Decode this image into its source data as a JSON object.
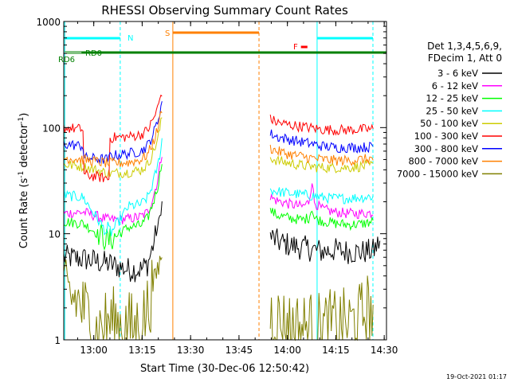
{
  "chart_data": {
    "type": "line",
    "title": "RHESSI Observing Summary Count Rates",
    "xlabel": "Start Time (30-Dec-06 12:50:42)",
    "ylabel_main": "Count Rate (s",
    "ylabel_sup1": "-1",
    "ylabel_mid": " detector",
    "ylabel_sup2": "-1",
    "ylabel_end": ")",
    "yscale": "log",
    "ylim": [
      1,
      1000
    ],
    "xlim_minutes": [
      0,
      100
    ],
    "x_ticks": [
      {
        "t": 9.3,
        "label": "13:00"
      },
      {
        "t": 24.3,
        "label": "13:15"
      },
      {
        "t": 39.3,
        "label": "13:30"
      },
      {
        "t": 54.3,
        "label": "13:45"
      },
      {
        "t": 69.3,
        "label": "14:00"
      },
      {
        "t": 84.3,
        "label": "14:15"
      },
      {
        "t": 99.3,
        "label": "14:30"
      }
    ],
    "y_ticks": [
      {
        "v": 1,
        "label": "1"
      },
      {
        "v": 10,
        "label": "10"
      },
      {
        "v": 100,
        "label": "100"
      },
      {
        "v": 1000,
        "label": "1000"
      }
    ],
    "legend_header": [
      "Det 1,3,4,5,6,9,",
      "FDecim 1, Att 0"
    ],
    "legend_placement": "right",
    "gap": [
      25,
      64
    ],
    "series": [
      {
        "name": "3 - 6 keV",
        "color": "#000000",
        "segments": [
          [
            [
              0,
              6.0
            ],
            [
              6,
              5.8
            ],
            [
              14,
              5.2
            ],
            [
              20,
              4.6
            ],
            [
              24,
              4.6
            ],
            [
              26,
              5.2
            ],
            [
              27,
              6.5
            ],
            [
              28,
              8.5
            ],
            [
              29,
              11
            ],
            [
              29.5,
              13
            ],
            [
              30,
              16
            ],
            [
              30.5,
              20
            ]
          ],
          [
            [
              64,
              9.5
            ],
            [
              66,
              8.5
            ],
            [
              70,
              7.8
            ],
            [
              76,
              7.2
            ],
            [
              80,
              6.8
            ],
            [
              84,
              7.0
            ],
            [
              88,
              6.8
            ],
            [
              92,
              6.7
            ],
            [
              96,
              6.9
            ],
            [
              98,
              8.5
            ]
          ]
        ]
      },
      {
        "name": "6 - 12 keV",
        "color": "#ff00ff",
        "segments": [
          [
            [
              0,
              15.5
            ],
            [
              6,
              16.0
            ],
            [
              14,
              13.5
            ],
            [
              20,
              13.8
            ],
            [
              24,
              14.5
            ],
            [
              26,
              16
            ],
            [
              27,
              19
            ],
            [
              28,
              24
            ],
            [
              29,
              31
            ],
            [
              29.5,
              38
            ],
            [
              30,
              48
            ],
            [
              30.5,
              60
            ]
          ],
          [
            [
              64,
              22
            ],
            [
              66,
              20.5
            ],
            [
              70,
              19
            ],
            [
              74,
              18
            ],
            [
              76,
              20
            ],
            [
              77,
              33
            ],
            [
              77.5,
              20
            ],
            [
              80,
              17
            ],
            [
              84,
              16
            ],
            [
              88,
              15.5
            ],
            [
              92,
              15.5
            ],
            [
              96,
              15.8
            ]
          ]
        ]
      },
      {
        "name": "12 - 25 keV",
        "color": "#00ff00",
        "segments": [
          [
            [
              0,
              13
            ],
            [
              6,
              12.5
            ],
            [
              14,
              8.5
            ],
            [
              20,
              11.5
            ],
            [
              24,
              12
            ],
            [
              26,
              14
            ],
            [
              27,
              17
            ],
            [
              28,
              21
            ],
            [
              29,
              27
            ],
            [
              29.5,
              32
            ],
            [
              30,
              40
            ],
            [
              30.5,
              52
            ]
          ],
          [
            [
              64,
              16.5
            ],
            [
              66,
              15
            ],
            [
              70,
              14
            ],
            [
              74,
              13.5
            ],
            [
              76,
              14.2
            ],
            [
              77,
              18
            ],
            [
              77.5,
              14
            ],
            [
              80,
              13.2
            ],
            [
              84,
              12.5
            ],
            [
              88,
              12.2
            ],
            [
              92,
              12.3
            ],
            [
              96,
              13
            ]
          ]
        ]
      },
      {
        "name": "25 - 50 keV",
        "color": "#00ffff",
        "segments": [
          [
            [
              0,
              23
            ],
            [
              6,
              22
            ],
            [
              14,
              9.5
            ],
            [
              20,
              18
            ],
            [
              24,
              19
            ],
            [
              26,
              22
            ],
            [
              27,
              26
            ],
            [
              28,
              33
            ],
            [
              29,
              42
            ],
            [
              29.5,
              50
            ],
            [
              30,
              62
            ],
            [
              30.5,
              80
            ]
          ],
          [
            [
              64,
              26
            ],
            [
              66,
              25
            ],
            [
              70,
              24
            ],
            [
              76,
              23
            ],
            [
              80,
              22
            ],
            [
              84,
              21.5
            ],
            [
              88,
              21.5
            ],
            [
              92,
              22
            ],
            [
              96,
              22.5
            ]
          ]
        ]
      },
      {
        "name": "50 - 100 keV",
        "color": "#cccc00",
        "segments": [
          [
            [
              0,
              45
            ],
            [
              6,
              43
            ],
            [
              14,
              37
            ],
            [
              20,
              38
            ],
            [
              24,
              40
            ],
            [
              26,
              45
            ],
            [
              27,
              52
            ],
            [
              28,
              62
            ],
            [
              29,
              75
            ],
            [
              29.5,
              88
            ],
            [
              30,
              105
            ],
            [
              30.5,
              130
            ]
          ],
          [
            [
              64,
              52
            ],
            [
              66,
              49
            ],
            [
              70,
              46
            ],
            [
              76,
              43
            ],
            [
              80,
              42
            ],
            [
              84,
              42
            ],
            [
              88,
              42
            ],
            [
              92,
              43
            ],
            [
              96,
              44
            ]
          ]
        ]
      },
      {
        "name": "100 - 300 keV",
        "color": "#ff0000",
        "segments": [
          [
            [
              0,
              100
            ],
            [
              6,
              96
            ],
            [
              6.1,
              36
            ],
            [
              14,
              33
            ],
            [
              14.1,
              80
            ],
            [
              20,
              82
            ],
            [
              24,
              86
            ],
            [
              26,
              95
            ],
            [
              27,
              108
            ],
            [
              28,
              125
            ],
            [
              29,
              150
            ],
            [
              29.5,
              170
            ],
            [
              30,
              200
            ],
            [
              30.5,
              220
            ]
          ],
          [
            [
              64,
              120
            ],
            [
              66,
              112
            ],
            [
              70,
              106
            ],
            [
              76,
              100
            ],
            [
              80,
              96
            ],
            [
              84,
              95
            ],
            [
              88,
              95
            ],
            [
              92,
              96
            ],
            [
              96,
              97
            ]
          ]
        ]
      },
      {
        "name": "300 - 800 keV",
        "color": "#0000ff",
        "segments": [
          [
            [
              0,
              70
            ],
            [
              6,
              67
            ],
            [
              6.1,
              52
            ],
            [
              14,
              50
            ],
            [
              14.1,
              54
            ],
            [
              20,
              57
            ],
            [
              24,
              60
            ],
            [
              26,
              68
            ],
            [
              27,
              78
            ],
            [
              28,
              92
            ],
            [
              29,
              112
            ],
            [
              29.5,
              130
            ],
            [
              30,
              155
            ],
            [
              30.5,
              175
            ]
          ],
          [
            [
              64,
              88
            ],
            [
              66,
              82
            ],
            [
              70,
              77
            ],
            [
              76,
              71
            ],
            [
              80,
              67
            ],
            [
              84,
              65
            ],
            [
              88,
              65
            ],
            [
              92,
              65
            ],
            [
              96,
              66
            ]
          ]
        ]
      },
      {
        "name": "800 - 7000 keV",
        "color": "#ff8000",
        "segments": [
          [
            [
              0,
              52
            ],
            [
              6,
              50
            ],
            [
              14,
              46
            ],
            [
              20,
              47
            ],
            [
              24,
              50
            ],
            [
              26,
              56
            ],
            [
              27,
              65
            ],
            [
              28,
              77
            ],
            [
              29,
              95
            ],
            [
              29.5,
              110
            ],
            [
              30,
              130
            ],
            [
              30.5,
              155
            ]
          ],
          [
            [
              64,
              64
            ],
            [
              66,
              60
            ],
            [
              70,
              56
            ],
            [
              76,
              52
            ],
            [
              80,
              50
            ],
            [
              84,
              49
            ],
            [
              88,
              49
            ],
            [
              92,
              50
            ],
            [
              96,
              51
            ]
          ]
        ]
      },
      {
        "name": "7000 - 15000 keV",
        "color": "#808000",
        "segments": [
          [
            [
              0,
              2.6
            ],
            [
              4,
              2.4
            ],
            [
              8,
              1.6
            ],
            [
              10,
              1.2
            ],
            [
              14,
              1.5
            ],
            [
              18,
              1.4
            ],
            [
              22,
              1.3
            ],
            [
              24,
              1.4
            ],
            [
              26,
              2.0
            ],
            [
              28,
              3.5
            ],
            [
              29,
              4.5
            ],
            [
              30.5,
              6.5
            ]
          ],
          [
            [
              64,
              1.7
            ],
            [
              68,
              1.4
            ],
            [
              72,
              1.3
            ],
            [
              76,
              1.3
            ],
            [
              80,
              1.3
            ],
            [
              84,
              1.4
            ],
            [
              88,
              1.4
            ],
            [
              92,
              1.6
            ],
            [
              94,
              2.0
            ],
            [
              96,
              1.8
            ]
          ]
        ]
      }
    ],
    "annotations": {
      "n_label": "N",
      "s_label": "S",
      "f_label": "F",
      "rd0_label": "RD0",
      "rd6_label": "RD6"
    },
    "colors": {
      "night": "#00ffff",
      "saa": "#ff8000",
      "flare": "#ff0000",
      "decim": "#008000"
    }
  },
  "footer": {
    "timestamp": "19-Oct-2021 01:17"
  }
}
